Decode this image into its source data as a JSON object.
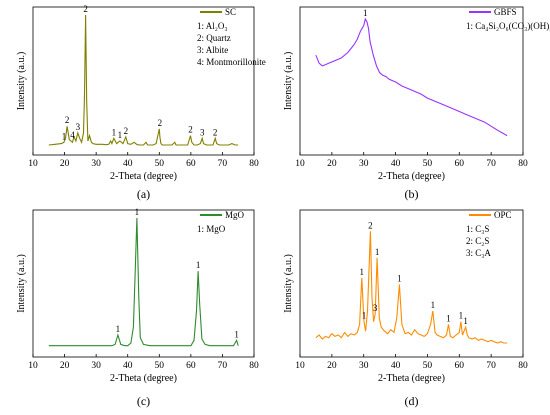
{
  "chart_data": [
    {
      "id": "a",
      "panel_label": "(a)",
      "type": "line",
      "xlabel": "2-Theta (degree)",
      "ylabel": "Intensity (a.u.)",
      "xlim": [
        10,
        80
      ],
      "ylim": [
        0,
        100
      ],
      "xticks": [
        "10",
        "20",
        "30",
        "40",
        "50",
        "60",
        "70",
        "80"
      ],
      "series": [
        {
          "name": "SC",
          "color": "#808000",
          "x": [
            15,
            17,
            19,
            19.8,
            20.3,
            20.8,
            21.5,
            22,
            22.5,
            23,
            23.6,
            24.2,
            24.8,
            25.4,
            26,
            26.3,
            26.65,
            27,
            27.4,
            27.9,
            28.5,
            29,
            30,
            31,
            32,
            33,
            34,
            34.6,
            35,
            35.6,
            36.5,
            37.5,
            38.5,
            39.4,
            40,
            41,
            42,
            43,
            44,
            45,
            45.8,
            46.3,
            47,
            48,
            49,
            50,
            50.2,
            50.5,
            51,
            52,
            53,
            54,
            54.9,
            55.3,
            56,
            57,
            58,
            59,
            59.9,
            60.3,
            61,
            62,
            63,
            63.6,
            64,
            65,
            66,
            67,
            67.7,
            68.2,
            69,
            70,
            71,
            72,
            73,
            74,
            75
          ],
          "values": [
            3,
            3.5,
            4,
            5,
            8,
            17,
            7,
            6,
            5,
            9,
            6,
            12,
            8,
            5,
            12,
            40,
            100,
            35,
            6,
            10,
            5,
            4,
            3.5,
            3.5,
            3.5,
            3.2,
            3.5,
            6,
            4,
            8,
            4,
            6,
            4,
            9,
            4,
            3.5,
            5,
            3.2,
            3,
            3,
            5,
            3,
            3,
            3,
            4,
            15,
            9,
            4,
            3,
            3,
            3,
            3,
            5,
            3,
            3,
            3,
            3,
            3,
            10,
            5,
            3,
            3,
            4,
            8,
            4,
            3,
            3,
            3,
            8,
            4,
            3,
            3,
            3,
            3,
            4,
            3,
            3
          ]
        }
      ],
      "peak_labels": [
        {
          "x": 20.8,
          "y": 17,
          "text": "2"
        },
        {
          "x": 19.8,
          "y": 5,
          "text": "1"
        },
        {
          "x": 22.5,
          "y": 6,
          "text": "4"
        },
        {
          "x": 24.2,
          "y": 12,
          "text": "3"
        },
        {
          "x": 26.65,
          "y": 100,
          "text": "2"
        },
        {
          "x": 35.6,
          "y": 8,
          "text": "1"
        },
        {
          "x": 37.5,
          "y": 6,
          "text": "1"
        },
        {
          "x": 39.4,
          "y": 9,
          "text": "2"
        },
        {
          "x": 50.2,
          "y": 15,
          "text": "2"
        },
        {
          "x": 59.9,
          "y": 10,
          "text": "2"
        },
        {
          "x": 63.6,
          "y": 8,
          "text": "3"
        },
        {
          "x": 67.7,
          "y": 8,
          "text": "2"
        }
      ],
      "notes": [
        "1: Al₂O₃",
        "2: Quartz",
        "3: Albite",
        "4: Montmorillonite"
      ]
    },
    {
      "id": "b",
      "panel_label": "(b)",
      "type": "line",
      "xlabel": "2-Theta (degree)",
      "ylabel": "Intensity (a.u.)",
      "xlim": [
        10,
        80
      ],
      "ylim": [
        0,
        100
      ],
      "xticks": [
        "10",
        "20",
        "30",
        "40",
        "50",
        "60",
        "70",
        "80"
      ],
      "series": [
        {
          "name": "GBFS",
          "color": "#9933ff",
          "x": [
            15,
            16,
            17,
            18,
            19,
            20,
            21,
            22,
            23,
            24,
            25,
            26,
            27,
            28,
            29,
            30,
            30.5,
            31,
            31.5,
            32,
            33,
            34,
            35,
            36,
            37,
            38,
            40,
            42,
            45,
            48,
            50,
            52,
            55,
            58,
            60,
            62,
            65,
            68,
            70,
            72,
            75
          ],
          "values": [
            70,
            64,
            62,
            63,
            64,
            65,
            66,
            67,
            68,
            70,
            72,
            75,
            78,
            82,
            88,
            92,
            97,
            95,
            90,
            80,
            70,
            62,
            57,
            55,
            54,
            52,
            50,
            47,
            44,
            41,
            38,
            36,
            33,
            30,
            28,
            26,
            23,
            20,
            17,
            14,
            10
          ]
        }
      ],
      "peak_labels": [
        {
          "x": 30.5,
          "y": 97,
          "text": "1"
        }
      ],
      "notes": [
        "1: Ca₄Si₂O₆(CO₃)(OH)₂"
      ]
    },
    {
      "id": "c",
      "panel_label": "(c)",
      "type": "line",
      "xlabel": "2-Theta (degree)",
      "ylabel": "Intensity (a.u.)",
      "xlim": [
        10,
        80
      ],
      "ylim": [
        0,
        100
      ],
      "xticks": [
        "10",
        "20",
        "30",
        "40",
        "50",
        "60",
        "70",
        "80"
      ],
      "series": [
        {
          "name": "MgO",
          "color": "#2e8b2e",
          "x": [
            15,
            20,
            25,
            30,
            35,
            36,
            36.9,
            37.8,
            39,
            40,
            41,
            41.8,
            42.3,
            42.9,
            43.5,
            44,
            45,
            47,
            50,
            55,
            58,
            60,
            61,
            61.8,
            62.3,
            62.8,
            63.5,
            64.5,
            66,
            70,
            72,
            73.5,
            74.5,
            75
          ],
          "values": [
            4,
            4,
            4,
            4,
            4,
            5,
            12,
            5,
            4,
            4,
            6,
            18,
            55,
            100,
            40,
            10,
            5,
            4,
            4,
            4,
            4,
            4,
            8,
            30,
            60,
            35,
            9,
            5,
            4,
            4,
            4,
            4,
            8,
            4
          ]
        }
      ],
      "peak_labels": [
        {
          "x": 36.9,
          "y": 12,
          "text": "1"
        },
        {
          "x": 42.9,
          "y": 100,
          "text": "1"
        },
        {
          "x": 62.3,
          "y": 60,
          "text": "1"
        },
        {
          "x": 74.5,
          "y": 8,
          "text": "1"
        }
      ],
      "notes": [
        "1: MgO"
      ]
    },
    {
      "id": "d",
      "panel_label": "(d)",
      "type": "line",
      "xlabel": "2-Theta (degree)",
      "ylabel": "Intensity (a.u.)",
      "xlim": [
        10,
        80
      ],
      "ylim": [
        0,
        100
      ],
      "xticks": [
        "10",
        "20",
        "30",
        "40",
        "50",
        "60",
        "70",
        "80"
      ],
      "series": [
        {
          "name": "OPC",
          "color": "#ff8c00",
          "x": [
            15,
            16,
            17,
            18,
            19,
            20,
            21,
            22,
            23,
            24,
            25,
            26,
            27,
            28,
            28.7,
            29.4,
            30.1,
            30.6,
            31.2,
            32.1,
            32.6,
            33.1,
            33.6,
            34.2,
            34.9,
            35.5,
            36.5,
            37.5,
            38.5,
            39.5,
            40.4,
            41.2,
            42,
            43,
            44,
            45,
            46,
            47,
            48,
            49,
            50,
            51,
            51.7,
            52.4,
            53,
            54,
            55,
            56,
            56.6,
            57.2,
            58,
            59,
            60,
            60.5,
            61,
            62,
            62.5,
            63,
            64,
            65,
            66,
            67,
            68,
            69,
            70,
            71,
            72,
            73,
            74,
            75
          ],
          "values": [
            10,
            12,
            9,
            11,
            10,
            13,
            11,
            12,
            10,
            14,
            11,
            13,
            12,
            14,
            20,
            55,
            22,
            15,
            30,
            90,
            40,
            22,
            28,
            70,
            25,
            18,
            15,
            13,
            16,
            14,
            25,
            50,
            20,
            13,
            14,
            12,
            16,
            13,
            12,
            11,
            13,
            20,
            30,
            14,
            12,
            11,
            10,
            12,
            20,
            11,
            10,
            12,
            14,
            22,
            12,
            18,
            12,
            10,
            9,
            10,
            8,
            9,
            8,
            7,
            8,
            7,
            6,
            7,
            6,
            6
          ]
        }
      ],
      "peak_labels": [
        {
          "x": 29.4,
          "y": 55,
          "text": "1"
        },
        {
          "x": 30.1,
          "y": 22,
          "text": "1"
        },
        {
          "x": 32.1,
          "y": 90,
          "text": "2"
        },
        {
          "x": 34.2,
          "y": 70,
          "text": "1"
        },
        {
          "x": 33.6,
          "y": 28,
          "text": "3"
        },
        {
          "x": 41.2,
          "y": 50,
          "text": "1"
        },
        {
          "x": 51.7,
          "y": 30,
          "text": "1"
        },
        {
          "x": 56.6,
          "y": 20,
          "text": "1"
        },
        {
          "x": 60.5,
          "y": 22,
          "text": "1"
        },
        {
          "x": 62,
          "y": 18,
          "text": "1"
        }
      ],
      "notes": [
        "1: C₃S",
        "2: C₂S",
        "3: C₃A"
      ]
    }
  ]
}
